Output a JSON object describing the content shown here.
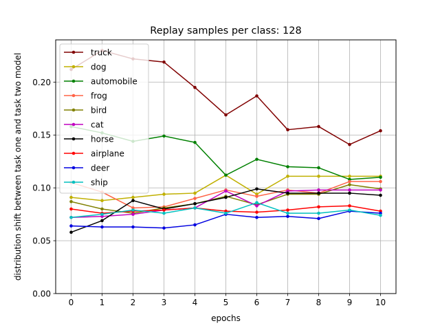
{
  "chart_data": {
    "type": "line",
    "title": "Replay samples per class: 128",
    "xlabel": "epochs",
    "ylabel": "distribution shift between task one and task two model",
    "x": [
      0,
      1,
      2,
      3,
      4,
      5,
      6,
      7,
      8,
      9,
      10
    ],
    "xlim": [
      -0.5,
      10.5
    ],
    "ylim": [
      0.0,
      0.24
    ],
    "xticks": [
      0,
      1,
      2,
      3,
      4,
      5,
      6,
      7,
      8,
      9,
      10
    ],
    "yticks": [
      0.0,
      0.05,
      0.1,
      0.15,
      0.2
    ],
    "ytick_labels": [
      "0.00",
      "0.05",
      "0.10",
      "0.15",
      "0.20"
    ],
    "grid": true,
    "legend": "top-left",
    "series": [
      {
        "name": "truck",
        "color": "#800000",
        "values": [
          0.212,
          0.23,
          0.222,
          0.219,
          0.195,
          0.169,
          0.187,
          0.155,
          0.158,
          0.141,
          0.154
        ]
      },
      {
        "name": "dog",
        "color": "#c0b000",
        "values": [
          0.091,
          0.088,
          0.091,
          0.094,
          0.095,
          0.112,
          0.094,
          0.111,
          0.111,
          0.111,
          0.111
        ]
      },
      {
        "name": "automobile",
        "color": "#008000",
        "values": [
          0.158,
          0.152,
          0.144,
          0.149,
          0.143,
          0.112,
          0.127,
          0.12,
          0.119,
          0.108,
          0.11
        ]
      },
      {
        "name": "frog",
        "color": "#ff6347",
        "values": [
          0.105,
          0.096,
          0.081,
          0.082,
          0.09,
          0.098,
          0.092,
          0.098,
          0.095,
          0.106,
          0.106
        ]
      },
      {
        "name": "bird",
        "color": "#808000",
        "values": [
          0.087,
          0.08,
          0.076,
          0.081,
          0.085,
          0.092,
          0.084,
          0.094,
          0.094,
          0.103,
          0.099
        ]
      },
      {
        "name": "cat",
        "color": "#c000c0",
        "values": [
          0.072,
          0.073,
          0.075,
          0.079,
          0.081,
          0.097,
          0.083,
          0.097,
          0.098,
          0.098,
          0.098
        ]
      },
      {
        "name": "horse",
        "color": "#000000",
        "values": [
          0.058,
          0.069,
          0.088,
          0.08,
          0.085,
          0.091,
          0.099,
          0.095,
          0.095,
          0.095,
          0.093
        ]
      },
      {
        "name": "airplane",
        "color": "#ff0000",
        "values": [
          0.08,
          0.076,
          0.078,
          0.079,
          0.081,
          0.078,
          0.077,
          0.079,
          0.082,
          0.083,
          0.078
        ]
      },
      {
        "name": "deer",
        "color": "#0000e0",
        "values": [
          0.064,
          0.063,
          0.063,
          0.062,
          0.065,
          0.075,
          0.072,
          0.073,
          0.071,
          0.078,
          0.076
        ]
      },
      {
        "name": "ship",
        "color": "#00bfbf",
        "values": [
          0.072,
          0.075,
          0.079,
          0.076,
          0.081,
          0.076,
          0.086,
          0.076,
          0.076,
          0.079,
          0.074
        ]
      }
    ]
  }
}
